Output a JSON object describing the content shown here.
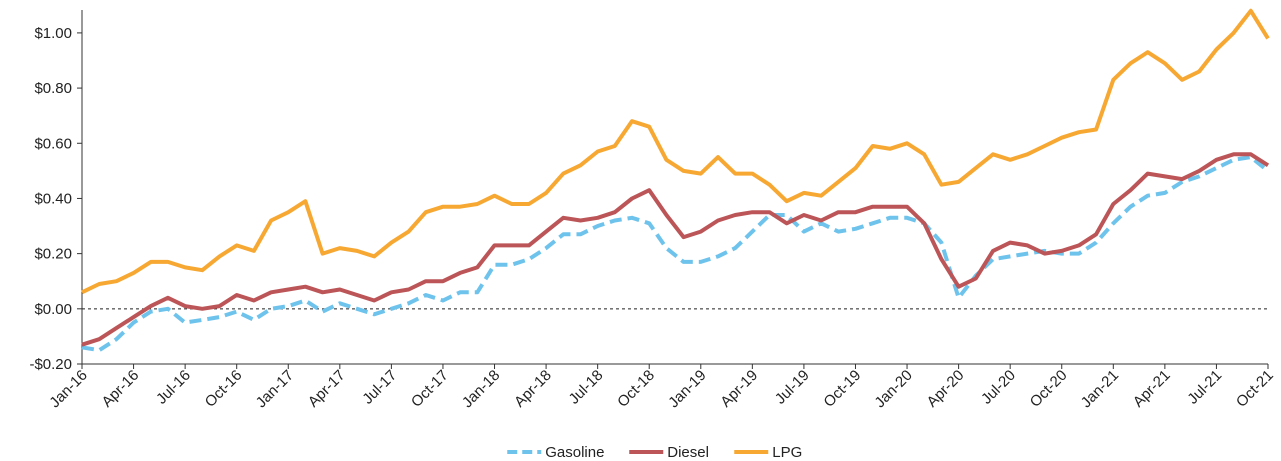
{
  "chart_data": {
    "type": "line",
    "categories": [
      "Jan-16",
      null,
      null,
      "Apr-16",
      null,
      null,
      "Jul-16",
      null,
      null,
      "Oct-16",
      null,
      null,
      "Jan-17",
      null,
      null,
      "Apr-17",
      null,
      null,
      "Jul-17",
      null,
      null,
      "Oct-17",
      null,
      null,
      "Jan-18",
      null,
      null,
      "Apr-18",
      null,
      null,
      "Jul-18",
      null,
      null,
      "Oct-18",
      null,
      null,
      "Jan-19",
      null,
      null,
      "Apr-19",
      null,
      null,
      "Jul-19",
      null,
      null,
      "Oct-19",
      null,
      null,
      "Jan-20",
      null,
      null,
      "Apr-20",
      null,
      null,
      "Jul-20",
      null,
      null,
      "Oct-20",
      null,
      null,
      "Jan-21",
      null,
      null,
      "Apr-21",
      null,
      null,
      "Jul-21",
      null,
      null,
      "Oct-21"
    ],
    "series": [
      {
        "name": "Gasoline",
        "color": "#6ec3ec",
        "dashed": true,
        "values": [
          -0.14,
          -0.15,
          -0.11,
          -0.05,
          -0.01,
          0.0,
          -0.05,
          -0.04,
          -0.03,
          -0.01,
          -0.04,
          0.0,
          0.01,
          0.03,
          -0.01,
          0.02,
          0.0,
          -0.02,
          0.0,
          0.02,
          0.05,
          0.03,
          0.06,
          0.06,
          0.16,
          0.16,
          0.18,
          0.22,
          0.27,
          0.27,
          0.3,
          0.32,
          0.33,
          0.31,
          0.22,
          0.17,
          0.17,
          0.19,
          0.22,
          0.28,
          0.34,
          0.34,
          0.28,
          0.31,
          0.28,
          0.29,
          0.31,
          0.33,
          0.33,
          0.31,
          0.24,
          0.04,
          0.12,
          0.18,
          0.19,
          0.2,
          0.21,
          0.2,
          0.2,
          0.24,
          0.31,
          0.37,
          0.41,
          0.42,
          0.46,
          0.48,
          0.51,
          0.54,
          0.55,
          0.5
        ]
      },
      {
        "name": "Diesel",
        "color": "#bc5557",
        "dashed": false,
        "values": [
          -0.13,
          -0.11,
          -0.07,
          -0.03,
          0.01,
          0.04,
          0.01,
          0.0,
          0.01,
          0.05,
          0.03,
          0.06,
          0.07,
          0.08,
          0.06,
          0.07,
          0.05,
          0.03,
          0.06,
          0.07,
          0.1,
          0.1,
          0.13,
          0.15,
          0.23,
          0.23,
          0.23,
          0.28,
          0.33,
          0.32,
          0.33,
          0.35,
          0.4,
          0.43,
          0.34,
          0.26,
          0.28,
          0.32,
          0.34,
          0.35,
          0.35,
          0.31,
          0.34,
          0.32,
          0.35,
          0.35,
          0.37,
          0.37,
          0.37,
          0.31,
          0.18,
          0.08,
          0.11,
          0.21,
          0.24,
          0.23,
          0.2,
          0.21,
          0.23,
          0.27,
          0.38,
          0.43,
          0.49,
          0.48,
          0.47,
          0.5,
          0.54,
          0.56,
          0.56,
          0.52
        ]
      },
      {
        "name": "LPG",
        "color": "#f6a833",
        "dashed": false,
        "values": [
          0.06,
          0.09,
          0.1,
          0.13,
          0.17,
          0.17,
          0.15,
          0.14,
          0.19,
          0.23,
          0.21,
          0.32,
          0.35,
          0.39,
          0.2,
          0.22,
          0.21,
          0.19,
          0.24,
          0.28,
          0.35,
          0.37,
          0.37,
          0.38,
          0.41,
          0.38,
          0.38,
          0.42,
          0.49,
          0.52,
          0.57,
          0.59,
          0.68,
          0.66,
          0.54,
          0.5,
          0.49,
          0.55,
          0.49,
          0.49,
          0.45,
          0.39,
          0.42,
          0.41,
          0.46,
          0.51,
          0.59,
          0.58,
          0.6,
          0.56,
          0.45,
          0.46,
          0.51,
          0.56,
          0.54,
          0.56,
          0.59,
          0.62,
          0.64,
          0.65,
          0.83,
          0.89,
          0.93,
          0.89,
          0.83,
          0.86,
          0.94,
          1.0,
          1.08,
          0.98
        ]
      }
    ],
    "ylim": [
      -0.2,
      1.083
    ],
    "yticks": [
      {
        "value": -0.2,
        "label": "-$0.20"
      },
      {
        "value": 0,
        "label": "$0.00"
      },
      {
        "value": 0.2,
        "label": "$0.20"
      },
      {
        "value": 0.4,
        "label": "$0.40"
      },
      {
        "value": 0.6,
        "label": "$0.60"
      },
      {
        "value": 0.8,
        "label": "$0.80"
      },
      {
        "value": 1.0,
        "label": "$1.00"
      }
    ],
    "zero_line": true,
    "legend": "bottom"
  }
}
